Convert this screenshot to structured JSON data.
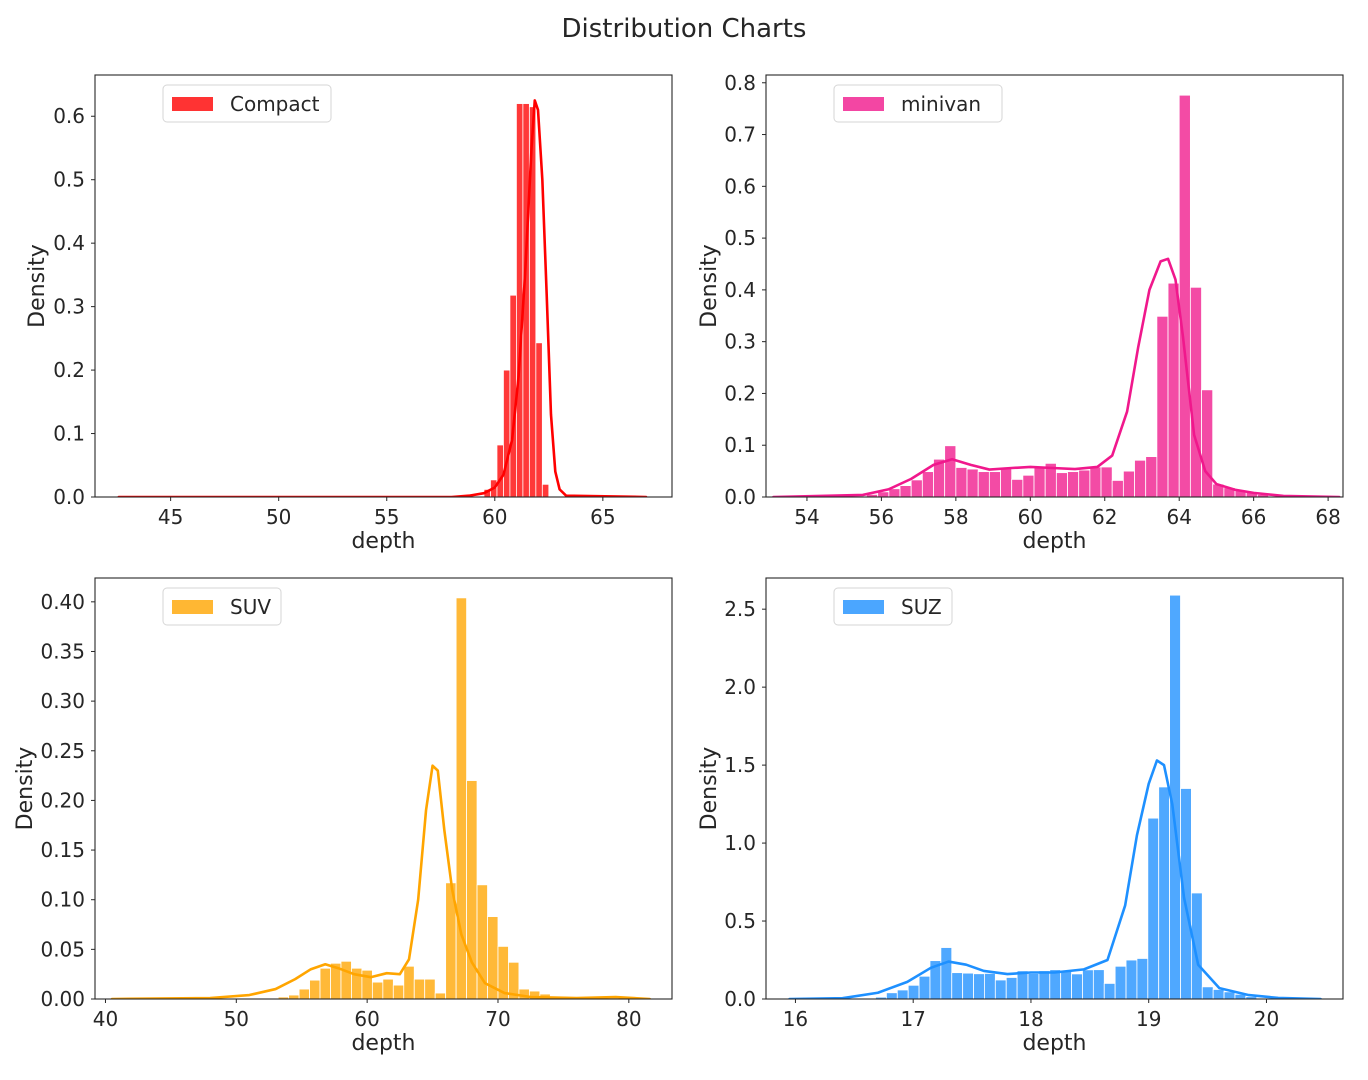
{
  "figure": {
    "title": "Distribution Charts"
  },
  "chart_data": [
    {
      "type": "histogram",
      "title": "",
      "xlabel": "depth",
      "ylabel": "Density",
      "xlim": [
        41.5,
        68.2
      ],
      "ylim": [
        0,
        0.665
      ],
      "xticks": [
        45,
        50,
        55,
        60,
        65
      ],
      "yticks": [
        0.0,
        0.1,
        0.2,
        0.3,
        0.4,
        0.5,
        0.6
      ],
      "ytick_labels": [
        "0.0",
        "0.1",
        "0.2",
        "0.3",
        "0.4",
        "0.5",
        "0.6"
      ],
      "legend": {
        "label": "Compact",
        "position": "upper-left"
      },
      "color": "#ff0000",
      "bars": {
        "x_start": 59.5,
        "bin_width": 0.3,
        "values": [
          0.012,
          0.027,
          0.082,
          0.2,
          0.318,
          0.62,
          0.62,
          0.615,
          0.243,
          0.02
        ]
      },
      "kde": {
        "x": [
          42.6,
          58.0,
          58.8,
          59.5,
          60.0,
          60.4,
          60.8,
          61.1,
          61.4,
          61.7,
          61.85,
          62.0,
          62.2,
          62.4,
          62.6,
          62.8,
          63.0,
          63.3,
          67.0
        ],
        "y": [
          0.0,
          0.0,
          0.002,
          0.006,
          0.015,
          0.035,
          0.09,
          0.19,
          0.35,
          0.55,
          0.625,
          0.61,
          0.5,
          0.32,
          0.13,
          0.04,
          0.012,
          0.002,
          0.0
        ]
      }
    },
    {
      "type": "histogram",
      "title": "",
      "xlabel": "depth",
      "ylabel": "Density",
      "xlim": [
        52.9,
        68.4
      ],
      "ylim": [
        0,
        0.815
      ],
      "xticks": [
        54,
        56,
        58,
        60,
        62,
        64,
        66,
        68
      ],
      "yticks": [
        0.0,
        0.1,
        0.2,
        0.3,
        0.4,
        0.5,
        0.6,
        0.7,
        0.8
      ],
      "ytick_labels": [
        "0.0",
        "0.1",
        "0.2",
        "0.3",
        "0.4",
        "0.5",
        "0.6",
        "0.7",
        "0.8"
      ],
      "legend": {
        "label": "minivan",
        "position": "upper-left"
      },
      "color": "#f0188c",
      "bars": {
        "x_start": 55.6,
        "bin_width": 0.3,
        "values": [
          0.005,
          0.01,
          0.016,
          0.022,
          0.033,
          0.049,
          0.073,
          0.099,
          0.057,
          0.054,
          0.049,
          0.049,
          0.057,
          0.034,
          0.042,
          0.059,
          0.065,
          0.047,
          0.049,
          0.052,
          0.058,
          0.058,
          0.032,
          0.05,
          0.071,
          0.078,
          0.349,
          0.413,
          0.776,
          0.405,
          0.207,
          0.025,
          0.018,
          0.013,
          0.009,
          0.005
        ]
      },
      "kde": {
        "x": [
          53.1,
          55.5,
          56.2,
          56.8,
          57.4,
          57.9,
          58.4,
          58.9,
          59.5,
          60.0,
          60.6,
          61.2,
          61.8,
          62.2,
          62.6,
          62.9,
          63.2,
          63.5,
          63.7,
          63.9,
          64.1,
          64.4,
          64.7,
          65.0,
          65.5,
          66.0,
          66.8,
          68.3
        ],
        "y": [
          0.0,
          0.004,
          0.015,
          0.035,
          0.062,
          0.073,
          0.062,
          0.053,
          0.056,
          0.058,
          0.056,
          0.054,
          0.058,
          0.08,
          0.165,
          0.29,
          0.4,
          0.455,
          0.46,
          0.42,
          0.31,
          0.12,
          0.05,
          0.025,
          0.014,
          0.008,
          0.002,
          0.0
        ]
      }
    },
    {
      "type": "histogram",
      "title": "",
      "xlabel": "depth",
      "ylabel": "Density",
      "xlim": [
        39.2,
        83.3
      ],
      "ylim": [
        0,
        0.424
      ],
      "xticks": [
        40,
        50,
        60,
        70,
        80
      ],
      "yticks": [
        0.0,
        0.05,
        0.1,
        0.15,
        0.2,
        0.25,
        0.3,
        0.35,
        0.4
      ],
      "ytick_labels": [
        "0.00",
        "0.05",
        "0.10",
        "0.15",
        "0.20",
        "0.25",
        "0.30",
        "0.35",
        "0.40"
      ],
      "legend": {
        "label": "SUV",
        "position": "upper-left"
      },
      "color": "#ffa500",
      "bars": {
        "x_start": 53.2,
        "bin_width": 0.8,
        "values": [
          0.002,
          0.004,
          0.01,
          0.019,
          0.031,
          0.036,
          0.038,
          0.031,
          0.029,
          0.017,
          0.02,
          0.014,
          0.033,
          0.02,
          0.02,
          0.006,
          0.117,
          0.404,
          0.22,
          0.115,
          0.083,
          0.053,
          0.037,
          0.01,
          0.008,
          0.005,
          0.002
        ]
      },
      "kde": {
        "x": [
          40.5,
          48.0,
          51.0,
          53.0,
          54.5,
          55.7,
          56.8,
          57.8,
          59.0,
          60.3,
          61.5,
          62.5,
          63.2,
          63.9,
          64.5,
          65.0,
          65.4,
          65.9,
          66.5,
          67.2,
          68.0,
          69.0,
          70.5,
          72.5,
          76.0,
          79.0,
          81.6
        ],
        "y": [
          0.0,
          0.001,
          0.004,
          0.01,
          0.02,
          0.03,
          0.035,
          0.031,
          0.025,
          0.022,
          0.026,
          0.025,
          0.04,
          0.1,
          0.19,
          0.235,
          0.23,
          0.17,
          0.11,
          0.065,
          0.037,
          0.016,
          0.006,
          0.002,
          0.001,
          0.002,
          0.0
        ]
      }
    },
    {
      "type": "histogram",
      "title": "",
      "xlabel": "depth",
      "ylabel": "Density",
      "xlim": [
        15.75,
        20.65
      ],
      "ylim": [
        0,
        2.7
      ],
      "xticks": [
        16,
        17,
        18,
        19,
        20
      ],
      "yticks": [
        0.0,
        0.5,
        1.0,
        1.5,
        2.0,
        2.5
      ],
      "ytick_labels": [
        "0.0",
        "0.5",
        "1.0",
        "1.5",
        "2.0",
        "2.5"
      ],
      "legend": {
        "label": "SUZ",
        "position": "upper-left"
      },
      "color": "#1e90ff",
      "bars": {
        "x_start": 16.68,
        "bin_width": 0.0925,
        "values": [
          0.012,
          0.04,
          0.058,
          0.088,
          0.146,
          0.246,
          0.33,
          0.169,
          0.166,
          0.162,
          0.164,
          0.122,
          0.138,
          0.181,
          0.163,
          0.181,
          0.188,
          0.183,
          0.161,
          0.187,
          0.188,
          0.1,
          0.21,
          0.25,
          0.26,
          1.16,
          1.36,
          2.59,
          1.35,
          0.68,
          0.078,
          0.061,
          0.046,
          0.03,
          0.015
        ]
      },
      "kde": {
        "x": [
          15.95,
          16.4,
          16.7,
          16.95,
          17.15,
          17.3,
          17.45,
          17.6,
          17.8,
          18.0,
          18.2,
          18.45,
          18.65,
          18.8,
          18.9,
          19.0,
          19.07,
          19.13,
          19.2,
          19.3,
          19.42,
          19.6,
          19.85,
          20.1,
          20.46
        ],
        "y": [
          0.0,
          0.005,
          0.04,
          0.11,
          0.2,
          0.24,
          0.22,
          0.18,
          0.16,
          0.17,
          0.17,
          0.19,
          0.25,
          0.6,
          1.05,
          1.38,
          1.53,
          1.5,
          1.25,
          0.65,
          0.22,
          0.07,
          0.025,
          0.007,
          0.0
        ]
      }
    }
  ]
}
